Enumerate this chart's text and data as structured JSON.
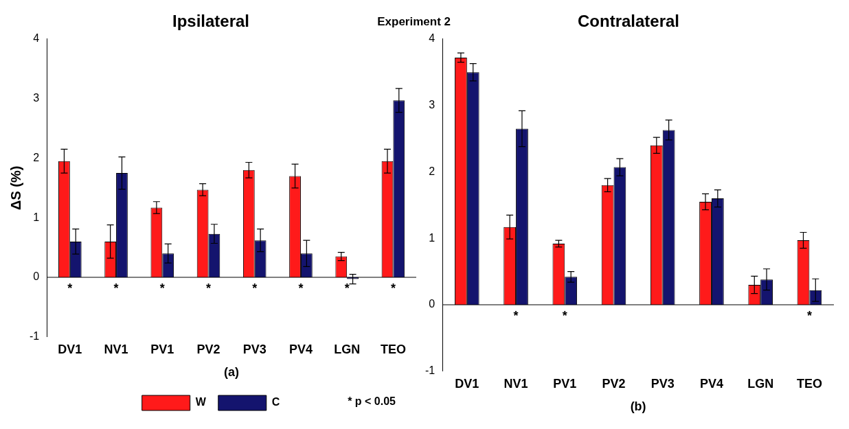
{
  "chart_data": [
    {
      "type": "bar",
      "title": "Ipsilateral",
      "xlabel": "(a)",
      "ylabel": "ΔS (%)",
      "categories": [
        "DV1",
        "NV1",
        "PV1",
        "PV2",
        "PV3",
        "PV4",
        "LGN",
        "TEO"
      ],
      "series": [
        {
          "name": "W",
          "color": "#ff1a1a",
          "values": [
            1.95,
            0.6,
            1.17,
            1.47,
            1.8,
            1.7,
            0.35,
            1.95
          ],
          "errors": [
            0.2,
            0.28,
            0.1,
            0.1,
            0.13,
            0.2,
            0.07,
            0.2
          ],
          "value_labels": [
            "*",
            "*",
            "*",
            "*",
            "*",
            "*",
            "*",
            "*"
          ]
        },
        {
          "name": "C",
          "color": "#14146e",
          "values": [
            0.6,
            1.75,
            0.4,
            0.73,
            0.62,
            0.4,
            -0.03,
            2.97
          ],
          "errors": [
            0.21,
            0.27,
            0.16,
            0.16,
            0.19,
            0.22,
            0.08,
            0.2
          ]
        }
      ],
      "ylim": [
        -1,
        4
      ],
      "yticks": [
        -1,
        0,
        1,
        2,
        3,
        4
      ],
      "grid": false,
      "legend": "bottom",
      "ref_lines": [
        {
          "axis": "y",
          "value": 0
        }
      ],
      "annotations": [
        "Experiment 2",
        "* p < 0.05"
      ]
    },
    {
      "type": "bar",
      "title": "Contralateral",
      "xlabel": "(b)",
      "categories": [
        "DV1",
        "NV1",
        "PV1",
        "PV2",
        "PV3",
        "PV4",
        "LGN",
        "TEO"
      ],
      "series": [
        {
          "color": "#ff1a1a",
          "values": [
            3.72,
            1.17,
            0.92,
            1.8,
            2.4,
            1.55,
            0.3,
            0.97
          ],
          "errors": [
            0.07,
            0.18,
            0.05,
            0.1,
            0.12,
            0.12,
            0.13,
            0.12
          ],
          "value_labels": [
            null,
            "*",
            "*",
            null,
            null,
            null,
            null,
            "*"
          ]
        },
        {
          "color": "#14146e",
          "values": [
            3.5,
            2.65,
            0.42,
            2.07,
            2.63,
            1.6,
            0.38,
            0.22
          ],
          "errors": [
            0.13,
            0.27,
            0.08,
            0.13,
            0.15,
            0.13,
            0.16,
            0.17
          ]
        }
      ],
      "ylim": [
        -1,
        4
      ],
      "yticks": [
        -1,
        0,
        1,
        2,
        3,
        4
      ],
      "grid": false,
      "legend": false,
      "ref_lines": [
        {
          "axis": "y",
          "value": 0
        }
      ]
    }
  ]
}
